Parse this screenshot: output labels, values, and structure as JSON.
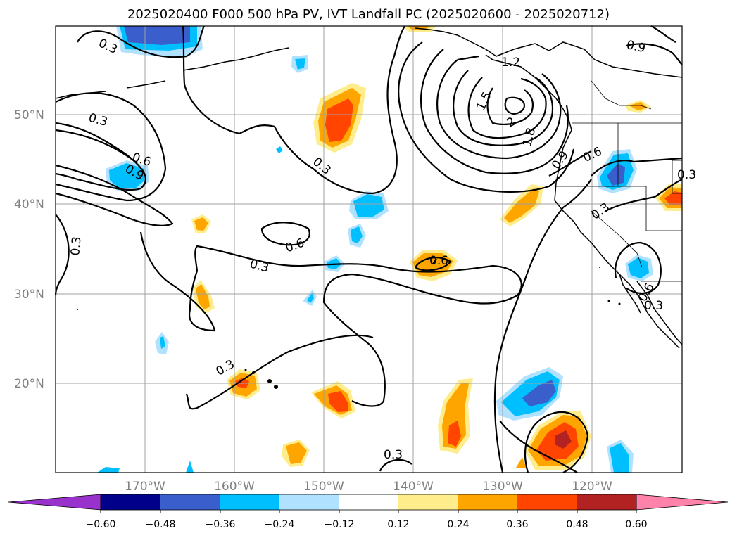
{
  "title": "2025020400 F000 500 hPa PV, IVT Landfall PC (2025020600 - 2025020712)",
  "map": {
    "lon_range": [
      -180,
      -110
    ],
    "lat_range": [
      10,
      60
    ],
    "lat_labels": [
      "50°N",
      "40°N",
      "30°N",
      "20°N"
    ],
    "lon_labels": [
      "170°W",
      "160°W",
      "150°W",
      "140°W",
      "130°W",
      "120°W"
    ],
    "contour_labels": [
      "0.3",
      "0.3",
      "0.6",
      "0.9",
      "0.3",
      "0.6",
      "0.3",
      "0.6",
      "0.3",
      "0.3",
      "1.2",
      "1.5",
      "1.8",
      "2",
      "0.9",
      "0.6",
      "0.3",
      "0.3",
      "0.6",
      "0.3",
      "0.3",
      "0.9"
    ]
  },
  "colorbar": {
    "ticks": [
      "−0.60",
      "−0.48",
      "−0.36",
      "−0.24",
      "−0.12",
      "0.12",
      "0.24",
      "0.36",
      "0.48",
      "0.60"
    ],
    "colors": [
      "#9932cc",
      "#00008b",
      "#3a5fcd",
      "#00bfff",
      "#b0e2ff",
      "#ffffff",
      "#ffec8b",
      "#ffa500",
      "#ff4500",
      "#b22222",
      "#ff82ab"
    ]
  },
  "shading_colors": {
    "neg_light": "#b0e2ff",
    "neg_mid": "#00bfff",
    "neg_strong": "#3a5fcd",
    "pos_light": "#ffec8b",
    "pos_mid": "#ffa500",
    "pos_strong": "#ff4500",
    "pos_max": "#b22222"
  }
}
